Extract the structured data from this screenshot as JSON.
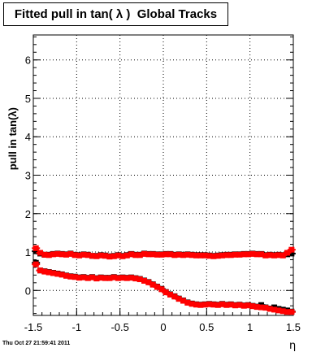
{
  "title": "Fitted pull in tan( λ )  Global Tracks",
  "timestamp": "Thu Oct 27 21:59:41 2011",
  "chart_data": {
    "type": "scatter",
    "title": "Fitted pull in tan( λ )  Global Tracks",
    "xlabel": "η",
    "ylabel": "pull in tan(λ)",
    "xlim": [
      -1.5,
      1.5
    ],
    "ylim": [
      -0.65,
      6.65
    ],
    "x_ticks": [
      "-1.5",
      "-1",
      "-0.5",
      "0",
      "0.5",
      "1",
      "1.5"
    ],
    "x_tick_values": [
      -1.5,
      -1,
      -0.5,
      0,
      0.5,
      1,
      1.5
    ],
    "y_ticks": [
      "0",
      "1",
      "2",
      "3",
      "4",
      "5",
      "6"
    ],
    "y_tick_values": [
      0,
      1,
      2,
      3,
      4,
      5,
      6
    ],
    "grid": true,
    "colors": {
      "marker_black": "#000000",
      "marker_red": "#ff0000",
      "grid": "#000000",
      "axis": "#000000"
    },
    "series": [
      {
        "color": "#000000",
        "x": [
          -1.47,
          -1.42,
          -1.37,
          -1.32,
          -1.27,
          -1.22,
          -1.17,
          -1.12,
          -1.07,
          -1.02,
          -0.97,
          -0.92,
          -0.87,
          -0.82,
          -0.77,
          -0.72,
          -0.67,
          -0.62,
          -0.57,
          -0.52,
          -0.47,
          -0.42,
          -0.37,
          -0.32,
          -0.27,
          -0.22,
          -0.17,
          -0.12,
          -0.07,
          -0.02,
          0.03,
          0.08,
          0.13,
          0.18,
          0.23,
          0.28,
          0.33,
          0.38,
          0.43,
          0.48,
          0.53,
          0.58,
          0.63,
          0.68,
          0.73,
          0.78,
          0.83,
          0.88,
          0.93,
          0.98,
          1.03,
          1.08,
          1.13,
          1.18,
          1.23,
          1.28,
          1.33,
          1.38,
          1.43,
          1.48
        ],
        "values": [
          1.02,
          0.96,
          0.93,
          0.93,
          0.95,
          0.96,
          0.95,
          0.94,
          0.96,
          0.93,
          0.92,
          0.94,
          0.93,
          0.9,
          0.9,
          0.92,
          0.91,
          0.89,
          0.9,
          0.92,
          0.9,
          0.92,
          0.95,
          0.93,
          0.93,
          0.96,
          0.95,
          0.95,
          0.94,
          0.94,
          0.95,
          0.95,
          0.93,
          0.94,
          0.93,
          0.94,
          0.93,
          0.92,
          0.92,
          0.92,
          0.91,
          0.9,
          0.91,
          0.92,
          0.93,
          0.93,
          0.94,
          0.94,
          0.95,
          0.95,
          0.96,
          0.95,
          0.95,
          0.92,
          0.93,
          0.92,
          0.93,
          0.92,
          0.94,
          0.96
        ]
      },
      {
        "color": "#ff0000",
        "x": [
          -1.47,
          -1.42,
          -1.37,
          -1.32,
          -1.27,
          -1.22,
          -1.17,
          -1.12,
          -1.07,
          -1.02,
          -0.97,
          -0.92,
          -0.87,
          -0.82,
          -0.77,
          -0.72,
          -0.67,
          -0.62,
          -0.57,
          -0.52,
          -0.47,
          -0.42,
          -0.37,
          -0.32,
          -0.27,
          -0.22,
          -0.17,
          -0.12,
          -0.07,
          -0.02,
          0.03,
          0.08,
          0.13,
          0.18,
          0.23,
          0.28,
          0.33,
          0.38,
          0.43,
          0.48,
          0.53,
          0.58,
          0.63,
          0.68,
          0.73,
          0.78,
          0.83,
          0.88,
          0.93,
          0.98,
          1.03,
          1.08,
          1.13,
          1.18,
          1.23,
          1.28,
          1.33,
          1.38,
          1.43,
          1.48
        ],
        "values": [
          1.1,
          0.98,
          0.93,
          0.92,
          0.94,
          0.95,
          0.94,
          0.93,
          0.95,
          0.92,
          0.91,
          0.93,
          0.92,
          0.9,
          0.89,
          0.91,
          0.9,
          0.88,
          0.89,
          0.91,
          0.89,
          0.91,
          0.94,
          0.92,
          0.92,
          0.95,
          0.94,
          0.94,
          0.93,
          0.93,
          0.94,
          0.94,
          0.92,
          0.93,
          0.92,
          0.93,
          0.92,
          0.91,
          0.91,
          0.91,
          0.9,
          0.89,
          0.9,
          0.91,
          0.92,
          0.92,
          0.93,
          0.93,
          0.94,
          0.94,
          0.95,
          0.94,
          0.94,
          0.91,
          0.92,
          0.91,
          0.92,
          0.91,
          0.98,
          1.06
        ]
      },
      {
        "color": "#000000",
        "x": [
          -1.47,
          -1.42,
          -1.37,
          -1.32,
          -1.27,
          -1.22,
          -1.17,
          -1.12,
          -1.07,
          -1.02,
          -0.97,
          -0.92,
          -0.87,
          -0.82,
          -0.77,
          -0.72,
          -0.67,
          -0.62,
          -0.57,
          -0.52,
          -0.47,
          -0.42,
          -0.37,
          -0.32,
          -0.27,
          -0.22,
          -0.17,
          -0.12,
          -0.07,
          -0.02,
          0.03,
          0.08,
          0.13,
          0.18,
          0.23,
          0.28,
          0.33,
          0.38,
          0.43,
          0.48,
          0.53,
          0.58,
          0.63,
          0.68,
          0.73,
          0.78,
          0.83,
          0.88,
          0.93,
          0.98,
          1.03,
          1.08,
          1.13,
          1.18,
          1.23,
          1.28,
          1.33,
          1.38,
          1.43,
          1.48
        ],
        "values": [
          0.72,
          0.52,
          0.5,
          0.48,
          0.46,
          0.44,
          0.42,
          0.39,
          0.37,
          0.36,
          0.34,
          0.35,
          0.33,
          0.35,
          0.32,
          0.34,
          0.33,
          0.33,
          0.35,
          0.33,
          0.34,
          0.33,
          0.34,
          0.32,
          0.3,
          0.26,
          0.22,
          0.16,
          0.1,
          0.04,
          -0.04,
          -0.1,
          -0.15,
          -0.21,
          -0.26,
          -0.31,
          -0.34,
          -0.36,
          -0.37,
          -0.36,
          -0.35,
          -0.36,
          -0.37,
          -0.35,
          -0.37,
          -0.36,
          -0.38,
          -0.37,
          -0.39,
          -0.38,
          -0.4,
          -0.42,
          -0.38,
          -0.44,
          -0.47,
          -0.44,
          -0.48,
          -0.5,
          -0.52,
          -0.55
        ]
      },
      {
        "color": "#ff0000",
        "x": [
          -1.47,
          -1.42,
          -1.37,
          -1.32,
          -1.27,
          -1.22,
          -1.17,
          -1.12,
          -1.07,
          -1.02,
          -0.97,
          -0.92,
          -0.87,
          -0.82,
          -0.77,
          -0.72,
          -0.67,
          -0.62,
          -0.57,
          -0.52,
          -0.47,
          -0.42,
          -0.37,
          -0.32,
          -0.27,
          -0.22,
          -0.17,
          -0.12,
          -0.07,
          -0.02,
          0.03,
          0.08,
          0.13,
          0.18,
          0.23,
          0.28,
          0.33,
          0.38,
          0.43,
          0.48,
          0.53,
          0.58,
          0.63,
          0.68,
          0.73,
          0.78,
          0.83,
          0.88,
          0.93,
          0.98,
          1.03,
          1.08,
          1.13,
          1.18,
          1.23,
          1.28,
          1.33,
          1.38,
          1.43,
          1.48
        ],
        "values": [
          0.68,
          0.52,
          0.49,
          0.47,
          0.45,
          0.43,
          0.41,
          0.38,
          0.36,
          0.35,
          0.33,
          0.34,
          0.32,
          0.34,
          0.31,
          0.33,
          0.32,
          0.32,
          0.34,
          0.32,
          0.33,
          0.32,
          0.33,
          0.31,
          0.29,
          0.25,
          0.21,
          0.15,
          0.09,
          0.03,
          -0.05,
          -0.11,
          -0.16,
          -0.22,
          -0.27,
          -0.32,
          -0.35,
          -0.37,
          -0.38,
          -0.37,
          -0.36,
          -0.37,
          -0.38,
          -0.36,
          -0.38,
          -0.37,
          -0.39,
          -0.38,
          -0.4,
          -0.39,
          -0.41,
          -0.43,
          -0.44,
          -0.45,
          -0.48,
          -0.5,
          -0.52,
          -0.54,
          -0.56,
          -0.56
        ]
      }
    ]
  }
}
